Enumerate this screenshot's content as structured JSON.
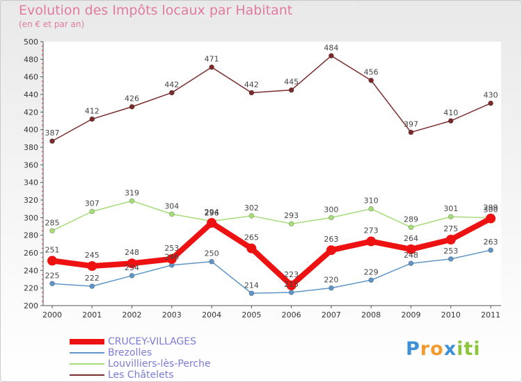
{
  "header": {
    "title": "Evolution des Impôts locaux par Habitant",
    "subtitle": "(en € et par an)"
  },
  "brand": {
    "letters": [
      "P",
      "r",
      "o",
      "x",
      "i",
      "ti"
    ]
  },
  "chart_data": {
    "type": "line",
    "categories": [
      "2000",
      "2001",
      "2002",
      "2003",
      "2004",
      "2005",
      "2006",
      "2007",
      "2008",
      "2009",
      "2010",
      "2011"
    ],
    "ylim": [
      200,
      500
    ],
    "yticks": [
      200,
      220,
      240,
      260,
      280,
      300,
      320,
      340,
      360,
      380,
      400,
      420,
      440,
      460,
      480,
      500
    ],
    "grid": false,
    "legend_position": "bottom-left",
    "series": [
      {
        "name": "Les Châtelets",
        "color": "#7a2a2a",
        "values": [
          387,
          412,
          426,
          442,
          471,
          442,
          445,
          484,
          456,
          397,
          410,
          430
        ]
      },
      {
        "name": "Louvilliers-lès-Perche",
        "color": "#a6dc7a",
        "values": [
          285,
          307,
          319,
          304,
          296,
          302,
          293,
          300,
          310,
          289,
          301,
          300
        ]
      },
      {
        "name": "Brezolles",
        "color": "#5f95c6",
        "values": [
          225,
          222,
          234,
          246,
          250,
          214,
          215,
          220,
          229,
          248,
          253,
          263
        ]
      },
      {
        "name": "CRUCEY-VILLAGES",
        "color": "#ee1111",
        "values": [
          251,
          245,
          248,
          253,
          294,
          265,
          223,
          263,
          273,
          264,
          275,
          299
        ]
      }
    ],
    "legend": [
      {
        "name": "CRUCEY-VILLAGES",
        "color": "#ee1111"
      },
      {
        "name": "Brezolles",
        "color": "#5f95c6"
      },
      {
        "name": "Louvilliers-lès-Perche",
        "color": "#a6dc7a"
      },
      {
        "name": "Les Châtelets",
        "color": "#7a2a2a"
      }
    ]
  }
}
